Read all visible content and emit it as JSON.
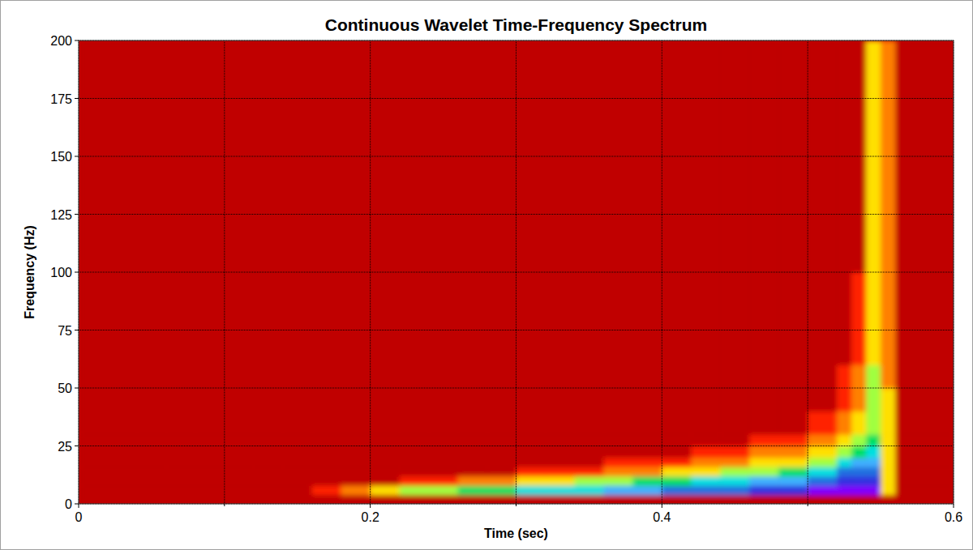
{
  "chart_data": {
    "type": "heatmap",
    "title": "Continuous Wavelet Time-Frequency Spectrum",
    "x_label": "Time (sec)",
    "y_label": "Frequency (Hz)",
    "xlim": [
      0,
      0.6
    ],
    "ylim": [
      0,
      200
    ],
    "xticks": [
      0,
      0.2,
      0.4,
      0.6
    ],
    "x_minor_ticks": [
      0.1,
      0.3,
      0.5
    ],
    "yticks": [
      0,
      25,
      50,
      75,
      100,
      125,
      150,
      175,
      200
    ],
    "grid": true,
    "zlim": [
      0,
      10
    ],
    "x_edges": [
      0,
      0.02,
      0.04,
      0.06,
      0.08,
      0.1,
      0.12,
      0.14,
      0.16,
      0.18,
      0.2,
      0.22,
      0.24,
      0.26,
      0.28,
      0.3,
      0.32,
      0.34,
      0.36,
      0.38,
      0.4,
      0.42,
      0.44,
      0.46,
      0.48,
      0.5,
      0.52,
      0.53,
      0.54,
      0.55,
      0.56,
      0.58,
      0.6
    ],
    "y_edges": [
      0,
      4,
      8,
      12,
      16,
      20,
      25,
      30,
      40,
      50,
      60,
      75,
      100,
      125,
      150,
      175,
      200
    ],
    "cells": [
      [
        0,
        0,
        0,
        0,
        0,
        0,
        0,
        0,
        0,
        0,
        0,
        0,
        0,
        0,
        0,
        0,
        0,
        0,
        0,
        0,
        0,
        0,
        0,
        0,
        0,
        0,
        0,
        0,
        0,
        0,
        0,
        0
      ],
      [
        0,
        0,
        0,
        0,
        0,
        0,
        0,
        0,
        1,
        2,
        3,
        4,
        4,
        5,
        5,
        6,
        6,
        6,
        7,
        7,
        8,
        8,
        8,
        9,
        9,
        10,
        10,
        10,
        10,
        3,
        0,
        0
      ],
      [
        0,
        0,
        0,
        0,
        0,
        0,
        0,
        0,
        0,
        0,
        0,
        1,
        1,
        2,
        2,
        3,
        3,
        4,
        4,
        5,
        5,
        6,
        6,
        7,
        7,
        8,
        9,
        9,
        9,
        3,
        0,
        0
      ],
      [
        0,
        0,
        0,
        0,
        0,
        0,
        0,
        0,
        0,
        0,
        0,
        0,
        0,
        0,
        0,
        1,
        1,
        1,
        2,
        2,
        3,
        3,
        4,
        4,
        5,
        6,
        8,
        8,
        8,
        3,
        0,
        0
      ],
      [
        0,
        0,
        0,
        0,
        0,
        0,
        0,
        0,
        0,
        0,
        0,
        0,
        0,
        0,
        0,
        0,
        0,
        0,
        1,
        1,
        1,
        2,
        2,
        3,
        3,
        4,
        6,
        7,
        7,
        3,
        0,
        0
      ],
      [
        0,
        0,
        0,
        0,
        0,
        0,
        0,
        0,
        0,
        0,
        0,
        0,
        0,
        0,
        0,
        0,
        0,
        0,
        0,
        0,
        0,
        1,
        1,
        2,
        2,
        3,
        4,
        5,
        6,
        3,
        0,
        0
      ],
      [
        0,
        0,
        0,
        0,
        0,
        0,
        0,
        0,
        0,
        0,
        0,
        0,
        0,
        0,
        0,
        0,
        0,
        0,
        0,
        0,
        0,
        0,
        0,
        1,
        1,
        2,
        3,
        4,
        5,
        3,
        0,
        0
      ],
      [
        0,
        0,
        0,
        0,
        0,
        0,
        0,
        0,
        0,
        0,
        0,
        0,
        0,
        0,
        0,
        0,
        0,
        0,
        0,
        0,
        0,
        0,
        0,
        0,
        0,
        1,
        2,
        3,
        4,
        3,
        0,
        0
      ],
      [
        0,
        0,
        0,
        0,
        0,
        0,
        0,
        0,
        0,
        0,
        0,
        0,
        0,
        0,
        0,
        0,
        0,
        0,
        0,
        0,
        0,
        0,
        0,
        0,
        0,
        0,
        1,
        2,
        4,
        3,
        0,
        0
      ],
      [
        0,
        0,
        0,
        0,
        0,
        0,
        0,
        0,
        0,
        0,
        0,
        0,
        0,
        0,
        0,
        0,
        0,
        0,
        0,
        0,
        0,
        0,
        0,
        0,
        0,
        0,
        1,
        2,
        4,
        2,
        0,
        0
      ],
      [
        0,
        0,
        0,
        0,
        0,
        0,
        0,
        0,
        0,
        0,
        0,
        0,
        0,
        0,
        0,
        0,
        0,
        0,
        0,
        0,
        0,
        0,
        0,
        0,
        0,
        0,
        0,
        1,
        3,
        2,
        0,
        0
      ],
      [
        0,
        0,
        0,
        0,
        0,
        0,
        0,
        0,
        0,
        0,
        0,
        0,
        0,
        0,
        0,
        0,
        0,
        0,
        0,
        0,
        0,
        0,
        0,
        0,
        0,
        0,
        0,
        1,
        3,
        2,
        0,
        0
      ],
      [
        0,
        0,
        0,
        0,
        0,
        0,
        0,
        0,
        0,
        0,
        0,
        0,
        0,
        0,
        0,
        0,
        0,
        0,
        0,
        0,
        0,
        0,
        0,
        0,
        0,
        0,
        0,
        0,
        3,
        2,
        0,
        0
      ],
      [
        0,
        0,
        0,
        0,
        0,
        0,
        0,
        0,
        0,
        0,
        0,
        0,
        0,
        0,
        0,
        0,
        0,
        0,
        0,
        0,
        0,
        0,
        0,
        0,
        0,
        0,
        0,
        0,
        3,
        2,
        0,
        0
      ],
      [
        0,
        0,
        0,
        0,
        0,
        0,
        0,
        0,
        0,
        0,
        0,
        0,
        0,
        0,
        0,
        0,
        0,
        0,
        0,
        0,
        0,
        0,
        0,
        0,
        0,
        0,
        0,
        0,
        3,
        2,
        0,
        0
      ],
      [
        0,
        0,
        0,
        0,
        0,
        0,
        0,
        0,
        0,
        0,
        0,
        0,
        0,
        0,
        0,
        0,
        0,
        0,
        0,
        0,
        0,
        0,
        0,
        0,
        0,
        0,
        0,
        0,
        3,
        2,
        0,
        0
      ]
    ]
  }
}
